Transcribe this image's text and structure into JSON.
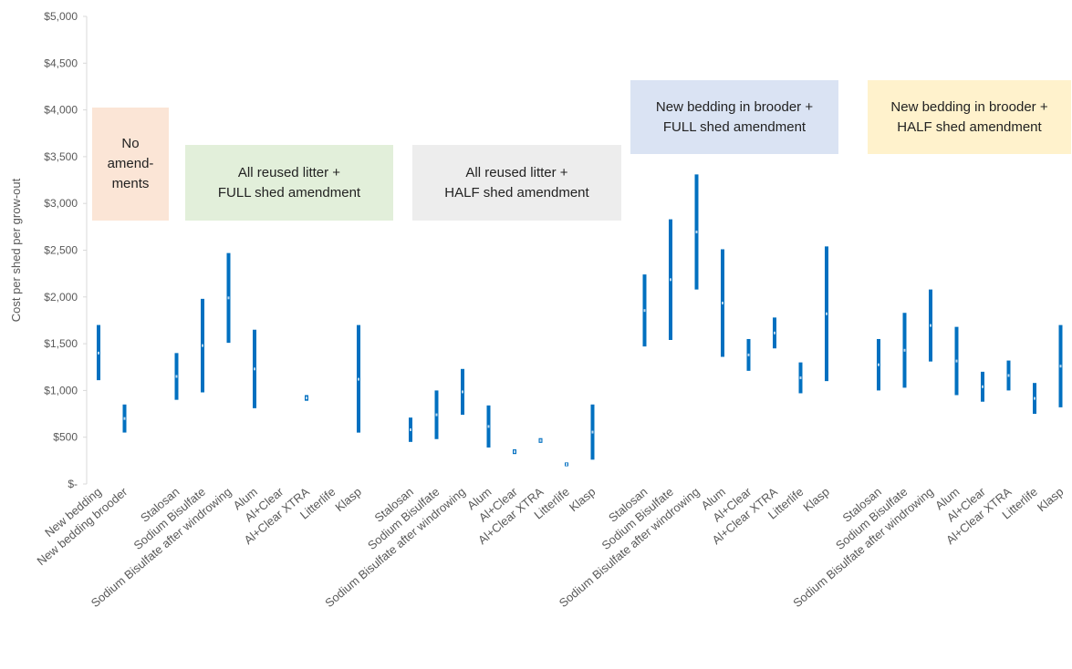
{
  "chart_data": {
    "type": "range",
    "ylabel": "Cost per shed per grow-out",
    "ylim": [
      0,
      5000
    ],
    "y_ticks": [
      "$-",
      "$500",
      "$1,000",
      "$1,500",
      "$2,000",
      "$2,500",
      "$3,000",
      "$3,500",
      "$4,000",
      "$4,500",
      "$5,000"
    ],
    "grid": false,
    "series_color": "#0070C0",
    "groups": [
      {
        "label": "No\namend-\nments",
        "color": "#FBE5D6",
        "categories": [
          {
            "name": "New bedding",
            "low": 1110,
            "high": 1700,
            "mid": 1400
          },
          {
            "name": "New bedding brooder",
            "low": 550,
            "high": 850,
            "mid": 700
          }
        ]
      },
      {
        "label": "All reused litter +\nFULL shed amendment",
        "color": "#E2EFDA",
        "categories": [
          {
            "name": "Stalosan",
            "low": 900,
            "high": 1400,
            "mid": 1150
          },
          {
            "name": "Sodium Bisulfate",
            "low": 980,
            "high": 1980,
            "mid": 1480
          },
          {
            "name": "Sodium Bisulfate after windrowing",
            "low": 1510,
            "high": 2470,
            "mid": 1990
          },
          {
            "name": "Alum",
            "low": 810,
            "high": 1650,
            "mid": 1230
          },
          {
            "name": "Al+Clear",
            "low": null,
            "high": null,
            "mid": null
          },
          {
            "name": "Al+Clear XTRA",
            "low": 890,
            "high": 950,
            "mid": 920
          },
          {
            "name": "Litterlife",
            "low": null,
            "high": null,
            "mid": null
          },
          {
            "name": "Klasp",
            "low": 550,
            "high": 1700,
            "mid": 1120
          }
        ]
      },
      {
        "label": "All reused litter +\nHALF shed amendment",
        "color": "#EDEDED",
        "categories": [
          {
            "name": "Stalosan",
            "low": 450,
            "high": 710,
            "mid": 580
          },
          {
            "name": "Sodium Bisulfate",
            "low": 480,
            "high": 1000,
            "mid": 740
          },
          {
            "name": "Sodium Bisulfate after windrowing",
            "low": 740,
            "high": 1230,
            "mid": 985
          },
          {
            "name": "Alum",
            "low": 390,
            "high": 840,
            "mid": 615
          },
          {
            "name": "Al+Clear",
            "low": 320,
            "high": 370,
            "mid": 345
          },
          {
            "name": "Al+Clear XTRA",
            "low": 440,
            "high": 490,
            "mid": 465
          },
          {
            "name": "Litterlife",
            "low": 190,
            "high": 230,
            "mid": 210
          },
          {
            "name": "Klasp",
            "low": 260,
            "high": 850,
            "mid": 555
          }
        ]
      },
      {
        "label": "New bedding in brooder +\nFULL shed amendment",
        "color": "#DAE3F3",
        "categories": [
          {
            "name": "Stalosan",
            "low": 1470,
            "high": 2240,
            "mid": 1855
          },
          {
            "name": "Sodium Bisulfate",
            "low": 1540,
            "high": 2830,
            "mid": 2185
          },
          {
            "name": "Sodium Bisulfate after windrowing",
            "low": 2080,
            "high": 3310,
            "mid": 2695
          },
          {
            "name": "Alum",
            "low": 1360,
            "high": 2510,
            "mid": 1935
          },
          {
            "name": "Al+Clear",
            "low": 1210,
            "high": 1550,
            "mid": 1380
          },
          {
            "name": "Al+Clear XTRA",
            "low": 1450,
            "high": 1780,
            "mid": 1615
          },
          {
            "name": "Litterlife",
            "low": 970,
            "high": 1300,
            "mid": 1135
          },
          {
            "name": "Klasp",
            "low": 1100,
            "high": 2540,
            "mid": 1820
          }
        ]
      },
      {
        "label": "New bedding in brooder +\nHALF shed amendment",
        "color": "#FFF2CC",
        "categories": [
          {
            "name": "Stalosan",
            "low": 1000,
            "high": 1550,
            "mid": 1275
          },
          {
            "name": "Sodium Bisulfate",
            "low": 1030,
            "high": 1830,
            "mid": 1430
          },
          {
            "name": "Sodium Bisulfate after windrowing",
            "low": 1310,
            "high": 2080,
            "mid": 1695
          },
          {
            "name": "Alum",
            "low": 950,
            "high": 1680,
            "mid": 1315
          },
          {
            "name": "Al+Clear",
            "low": 880,
            "high": 1200,
            "mid": 1040
          },
          {
            "name": "Al+Clear XTRA",
            "low": 1000,
            "high": 1320,
            "mid": 1160
          },
          {
            "name": "Litterlife",
            "low": 750,
            "high": 1080,
            "mid": 915
          },
          {
            "name": "Klasp",
            "low": 820,
            "high": 1700,
            "mid": 1260
          }
        ]
      }
    ]
  }
}
